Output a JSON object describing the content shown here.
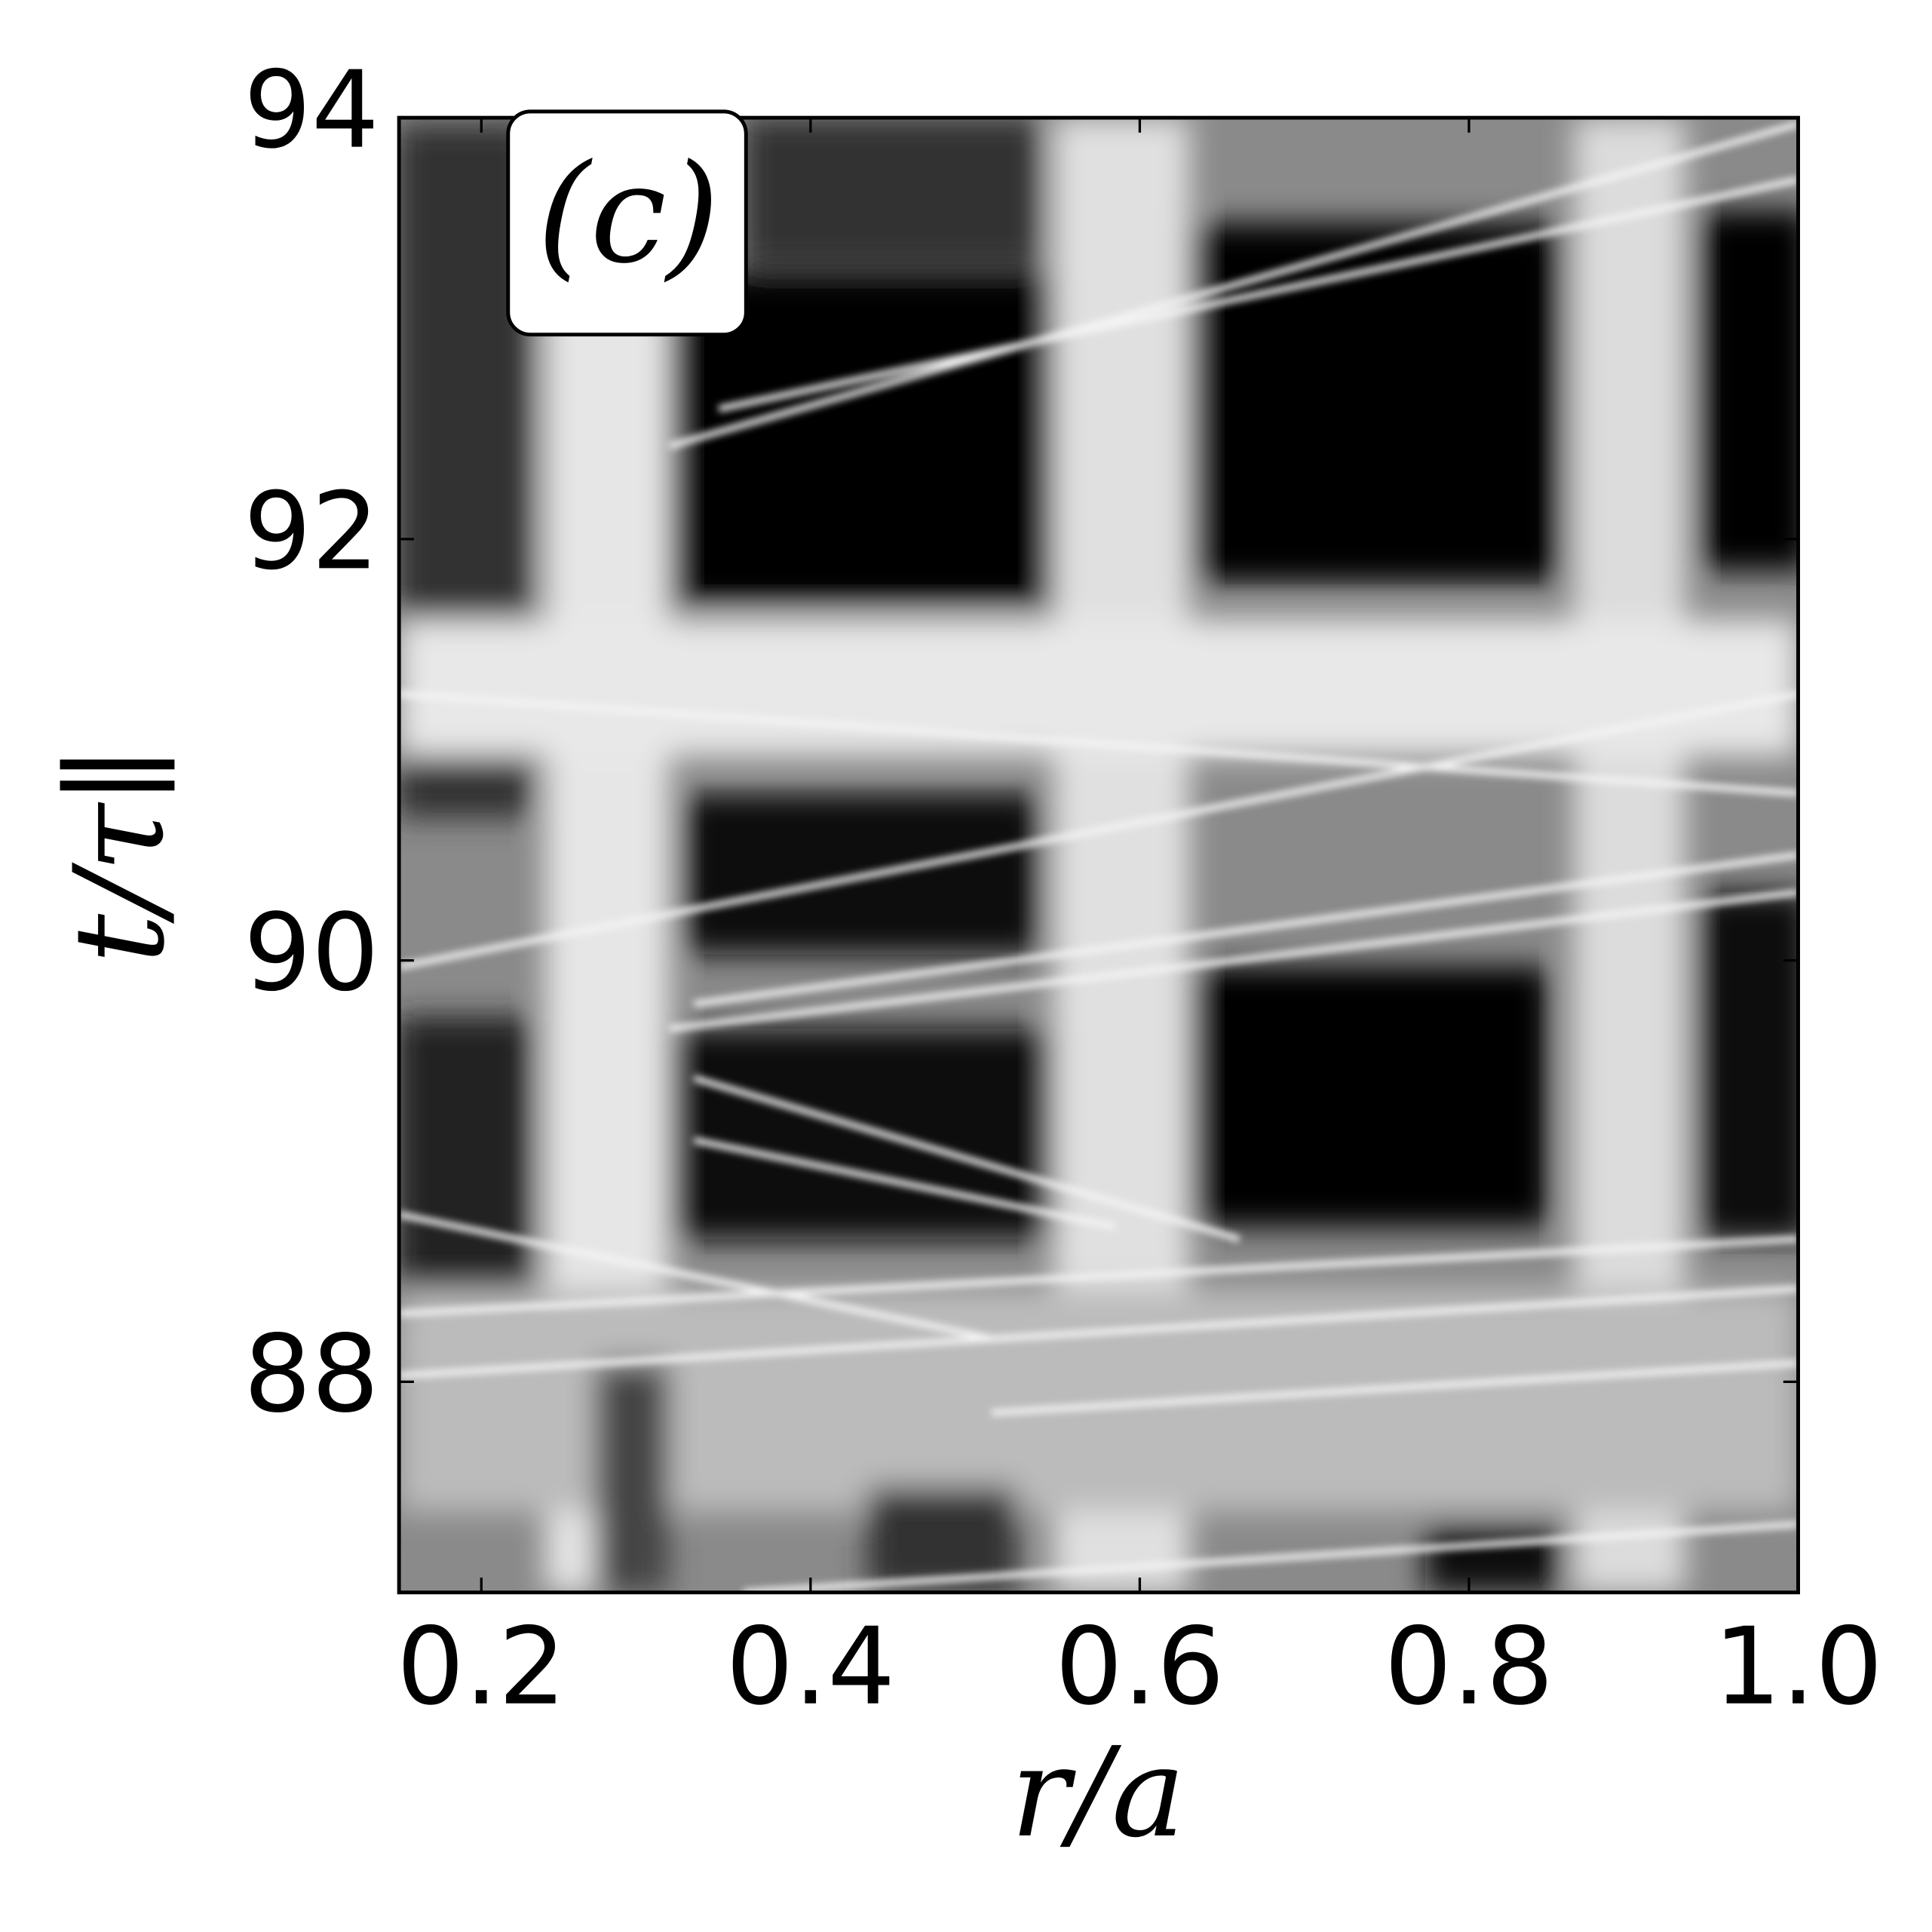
{
  "chart_data": {
    "type": "heatmap",
    "annotation": "(c)",
    "x_label": "r/a",
    "y_label": "t/τ∥",
    "xlim": [
      0.15,
      1.0
    ],
    "xticks": [
      0.2,
      0.4,
      0.6,
      0.8,
      {
        "value": 1,
        "label": "1.0"
      }
    ],
    "ylim": [
      87,
      94
    ],
    "yticks": [
      88,
      90,
      92,
      94
    ],
    "colormap": "gray"
  }
}
